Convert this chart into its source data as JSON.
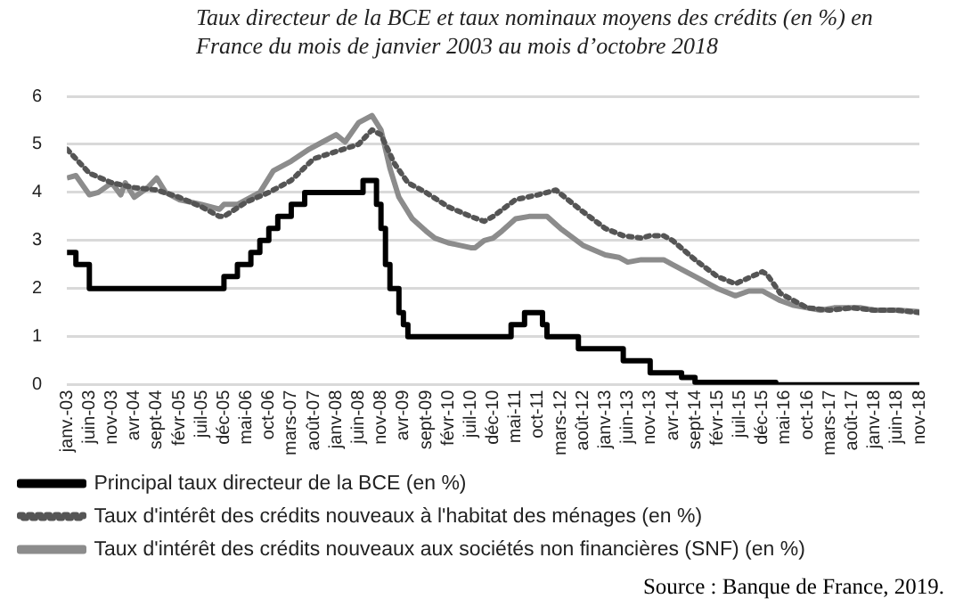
{
  "chart_data": {
    "type": "line",
    "title": "Taux directeur de la BCE et taux nominaux moyens des crédits (en %) en France du mois de janvier 2003 au mois d’octobre 2018",
    "annotations": [
      "Source : Banque de France, 2019."
    ],
    "xlim": [
      "2003-01",
      "2018-11"
    ],
    "xticks": [
      {
        "value": "2003-01",
        "label": "janv.-03"
      },
      {
        "value": "2003-06",
        "label": "juin-03"
      },
      {
        "value": "2003-11",
        "label": "nov-03"
      },
      {
        "value": "2004-04",
        "label": "avr-04"
      },
      {
        "value": "2004-09",
        "label": "sept-04"
      },
      {
        "value": "2005-02",
        "label": "févr-05"
      },
      {
        "value": "2005-07",
        "label": "juil-05"
      },
      {
        "value": "2005-12",
        "label": "déc-05"
      },
      {
        "value": "2006-05",
        "label": "mai-06"
      },
      {
        "value": "2006-10",
        "label": "oct-06"
      },
      {
        "value": "2007-03",
        "label": "mars-07"
      },
      {
        "value": "2007-08",
        "label": "août-07"
      },
      {
        "value": "2008-01",
        "label": "janv-08"
      },
      {
        "value": "2008-06",
        "label": "juin-08"
      },
      {
        "value": "2008-11",
        "label": "nov-08"
      },
      {
        "value": "2009-04",
        "label": "avr-09"
      },
      {
        "value": "2009-09",
        "label": "sept-09"
      },
      {
        "value": "2010-02",
        "label": "févr-10"
      },
      {
        "value": "2010-07",
        "label": "juil-10"
      },
      {
        "value": "2010-12",
        "label": "déc-10"
      },
      {
        "value": "2011-05",
        "label": "mai-11"
      },
      {
        "value": "2011-10",
        "label": "oct-11"
      },
      {
        "value": "2012-03",
        "label": "mars-12"
      },
      {
        "value": "2012-08",
        "label": "août-12"
      },
      {
        "value": "2013-01",
        "label": "janv-13"
      },
      {
        "value": "2013-06",
        "label": "juin-13"
      },
      {
        "value": "2013-11",
        "label": "nov-13"
      },
      {
        "value": "2014-04",
        "label": "avr-14"
      },
      {
        "value": "2014-09",
        "label": "sept-14"
      },
      {
        "value": "2015-02",
        "label": "févr-15"
      },
      {
        "value": "2015-07",
        "label": "juil-15"
      },
      {
        "value": "2015-12",
        "label": "déc-15"
      },
      {
        "value": "2016-05",
        "label": "mai-16"
      },
      {
        "value": "2016-10",
        "label": "oct-16"
      },
      {
        "value": "2017-03",
        "label": "mars-17"
      },
      {
        "value": "2017-08",
        "label": "août-17"
      },
      {
        "value": "2018-01",
        "label": "janv-18"
      },
      {
        "value": "2018-06",
        "label": "juin-18"
      },
      {
        "value": "2018-11",
        "label": "nov-18"
      }
    ],
    "ylim": [
      0,
      6
    ],
    "yticks": [
      0,
      1,
      2,
      3,
      4,
      5,
      6
    ],
    "grid": "y",
    "legend": "bottom",
    "marker": "none",
    "series": [
      {
        "name": "Principal taux directeur de la BCE (en %)",
        "type": "step",
        "color": "#000000",
        "line_style": "solid",
        "x": [
          "2003-01",
          "2003-03",
          "2003-06",
          "2005-12",
          "2006-03",
          "2006-06",
          "2006-08",
          "2006-10",
          "2006-12",
          "2007-03",
          "2007-06",
          "2008-07",
          "2008-10",
          "2008-11",
          "2008-12",
          "2009-01",
          "2009-03",
          "2009-04",
          "2009-05",
          "2011-04",
          "2011-07",
          "2011-11",
          "2011-12",
          "2012-07",
          "2013-05",
          "2013-11",
          "2014-06",
          "2014-09",
          "2016-03",
          "2018-11"
        ],
        "values": [
          2.75,
          2.5,
          2,
          2.25,
          2.5,
          2.75,
          3,
          3.25,
          3.5,
          3.75,
          4,
          4.25,
          3.75,
          3.25,
          2.5,
          2,
          1.5,
          1.25,
          1,
          1.25,
          1.5,
          1.25,
          1,
          0.75,
          0.5,
          0.25,
          0.15,
          0.05,
          0,
          0
        ]
      },
      {
        "name": "Taux d'intérêt des crédits nouveaux à l'habitat des ménages (en %)",
        "type": "line",
        "color": "#555555",
        "line_style": "dotted",
        "x": [
          "2003-01",
          "2003-06",
          "2003-11",
          "2004-04",
          "2004-09",
          "2005-02",
          "2005-07",
          "2005-11",
          "2005-12",
          "2006-05",
          "2006-10",
          "2007-03",
          "2007-08",
          "2008-01",
          "2008-06",
          "2008-09",
          "2008-11",
          "2009-02",
          "2009-05",
          "2009-09",
          "2010-02",
          "2010-07",
          "2010-10",
          "2010-12",
          "2011-05",
          "2011-10",
          "2012-02",
          "2012-08",
          "2013-01",
          "2013-05",
          "2013-09",
          "2013-11",
          "2014-02",
          "2014-04",
          "2014-09",
          "2015-02",
          "2015-06",
          "2015-12",
          "2016-01",
          "2016-04",
          "2016-10",
          "2017-03",
          "2017-08",
          "2018-01",
          "2018-06",
          "2018-11"
        ],
        "values": [
          4.9,
          4.4,
          4.2,
          4.1,
          4.05,
          3.9,
          3.7,
          3.5,
          3.5,
          3.8,
          4,
          4.25,
          4.7,
          4.85,
          5,
          5.3,
          5.2,
          4.6,
          4.2,
          4,
          3.7,
          3.5,
          3.4,
          3.5,
          3.85,
          3.95,
          4.05,
          3.6,
          3.25,
          3.1,
          3.05,
          3.1,
          3.1,
          3,
          2.6,
          2.25,
          2.1,
          2.35,
          2.3,
          1.9,
          1.6,
          1.55,
          1.6,
          1.55,
          1.55,
          1.5
        ]
      },
      {
        "name": "Taux d'intérêt des crédits nouveaux aux sociétés non financières (SNF) (en %)",
        "type": "line",
        "color": "#8c8c8c",
        "line_style": "solid",
        "x": [
          "2003-01",
          "2003-03",
          "2003-06",
          "2003-08",
          "2003-11",
          "2004-01",
          "2004-02",
          "2004-04",
          "2004-07",
          "2004-09",
          "2004-11",
          "2005-02",
          "2005-07",
          "2005-11",
          "2005-12",
          "2006-03",
          "2006-08",
          "2006-11",
          "2007-03",
          "2007-07",
          "2007-10",
          "2008-01",
          "2008-03",
          "2008-06",
          "2008-09",
          "2008-11",
          "2009-01",
          "2009-03",
          "2009-06",
          "2009-09",
          "2009-11",
          "2010-02",
          "2010-07",
          "2010-08",
          "2010-10",
          "2010-12",
          "2011-02",
          "2011-05",
          "2011-08",
          "2011-12",
          "2012-03",
          "2012-08",
          "2013-01",
          "2013-04",
          "2013-06",
          "2013-09",
          "2014-02",
          "2014-04",
          "2014-10",
          "2015-02",
          "2015-06",
          "2015-09",
          "2015-12",
          "2016-02",
          "2016-04",
          "2016-07",
          "2016-10",
          "2017-01",
          "2017-04",
          "2017-08",
          "2017-10",
          "2018-01",
          "2018-06",
          "2018-11"
        ],
        "values": [
          4.3,
          4.35,
          3.95,
          4,
          4.2,
          3.95,
          4.2,
          3.9,
          4.1,
          4.3,
          4,
          3.85,
          3.75,
          3.65,
          3.75,
          3.75,
          4,
          4.45,
          4.65,
          4.9,
          5.05,
          5.2,
          5.05,
          5.45,
          5.6,
          5.3,
          4.5,
          3.9,
          3.45,
          3.2,
          3.05,
          2.95,
          2.85,
          2.85,
          3,
          3.05,
          3.2,
          3.45,
          3.5,
          3.5,
          3.25,
          2.9,
          2.7,
          2.65,
          2.55,
          2.6,
          2.6,
          2.5,
          2.2,
          2,
          1.85,
          1.95,
          1.95,
          1.85,
          1.75,
          1.65,
          1.6,
          1.55,
          1.6,
          1.6,
          1.6,
          1.55,
          1.55,
          1.52
        ]
      }
    ]
  }
}
